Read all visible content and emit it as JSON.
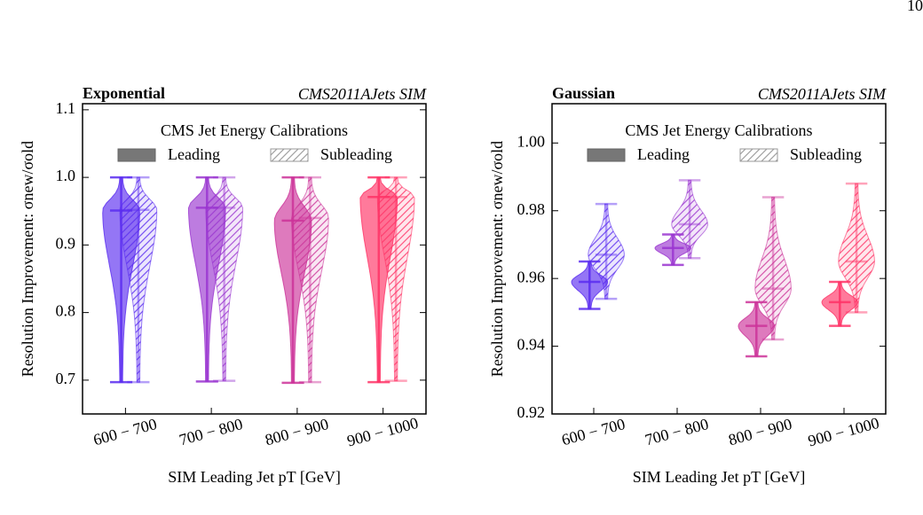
{
  "page_number": "10",
  "chart_data": [
    {
      "type": "violin",
      "title": "Exponential",
      "annotation": "CMS2011AJets SIM",
      "legend_title": "CMS Jet Energy Calibrations",
      "x_label": "SIM Leading Jet pT [GeV]",
      "y_label": "Resolution Improvement: σnew/σold",
      "categories": [
        "600 − 700",
        "700 − 800",
        "800 − 900",
        "900 − 1000"
      ],
      "colors": [
        "#5a2df0",
        "#9a35d0",
        "#cc3399",
        "#ff3366"
      ],
      "ylim": [
        0.65,
        1.109
      ],
      "yticks": [
        0.7,
        0.8,
        0.9,
        {
          "value": 1,
          "label": "1.0"
        },
        1.1
      ],
      "series": [
        {
          "name": "Leading",
          "hatch": false,
          "min": [
            0.697,
            0.698,
            0.696,
            0.697
          ],
          "median": [
            0.951,
            0.955,
            0.936,
            0.971
          ],
          "max": [
            1.0,
            1.0,
            1.0,
            1.0
          ]
        },
        {
          "name": "Subleading",
          "hatch": true,
          "min": [
            0.697,
            0.699,
            0.697,
            0.699
          ],
          "median": [
            0.952,
            0.955,
            0.94,
            0.971
          ],
          "max": [
            1.0,
            1.0,
            1.0,
            1.0
          ]
        }
      ]
    },
    {
      "type": "violin",
      "title": "Gaussian",
      "annotation": "CMS2011AJets SIM",
      "legend_title": "CMS Jet Energy Calibrations",
      "x_label": "SIM Leading Jet pT [GeV]",
      "y_label": "Resolution Improvement: σnew/σold",
      "categories": [
        "600 − 700",
        "700 − 800",
        "800 − 900",
        "900 − 1000"
      ],
      "colors": [
        "#5a2df0",
        "#9a35d0",
        "#cc3399",
        "#ff3366"
      ],
      "ylim": [
        0.92,
        1.0116
      ],
      "yticks": [
        0.92,
        0.94,
        0.96,
        0.98,
        {
          "value": 1,
          "label": "1.00"
        }
      ],
      "series": [
        {
          "name": "Leading",
          "hatch": false,
          "min": [
            0.951,
            0.964,
            0.937,
            0.946
          ],
          "median": [
            0.959,
            0.969,
            0.946,
            0.953
          ],
          "max": [
            0.965,
            0.973,
            0.953,
            0.959
          ]
        },
        {
          "name": "Subleading",
          "hatch": true,
          "min": [
            0.954,
            0.966,
            0.942,
            0.95
          ],
          "median": [
            0.967,
            0.976,
            0.957,
            0.965
          ],
          "max": [
            0.982,
            0.989,
            0.984,
            0.988
          ]
        }
      ]
    }
  ]
}
